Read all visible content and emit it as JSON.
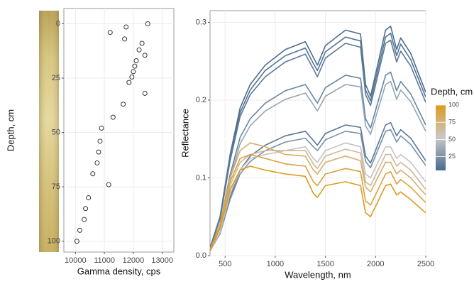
{
  "chart_data": [
    {
      "type": "scatter",
      "xlabel": "Gamma density, cps",
      "ylabel": "Depth, cm",
      "xlim": [
        9600,
        13400
      ],
      "xticks": [
        10000,
        11000,
        12000,
        13000
      ],
      "ylim": [
        105,
        -7
      ],
      "yticks": [
        0,
        25,
        50,
        75,
        100
      ],
      "grid": true,
      "color": "#333333",
      "x": [
        12500,
        11750,
        11200,
        11700,
        12300,
        12200,
        12400,
        12100,
        12050,
        12000,
        11950,
        11850,
        12400,
        11650,
        11300,
        10900,
        10850,
        10800,
        10750,
        10600,
        11150,
        10450,
        10350,
        10300,
        10150,
        10050
      ],
      "values": [
        0,
        1.5,
        4,
        7,
        9,
        12,
        14.5,
        17,
        19.5,
        22,
        24.5,
        27,
        32,
        37,
        43,
        48,
        54,
        59,
        64,
        69,
        74,
        80,
        85,
        90,
        95,
        100
      ]
    },
    {
      "type": "line",
      "xlabel": "Wavelength, nm",
      "ylabel": "Reflectance",
      "xlim": [
        350,
        2500
      ],
      "xticks": [
        500,
        1000,
        1500,
        2000,
        2500
      ],
      "ylim": [
        0,
        0.315
      ],
      "yticks": [
        {
          "value": 0,
          "label": "0.0"
        },
        0.1,
        0.2,
        0.3
      ],
      "grid": true,
      "x": [
        350,
        450,
        550,
        650,
        750,
        900,
        1100,
        1300,
        1380,
        1420,
        1500,
        1700,
        1850,
        1900,
        1950,
        2100,
        2150,
        2210,
        2250,
        2350,
        2500
      ],
      "series": [
        {
          "color": "#4e6d8f",
          "values": [
            0.01,
            0.05,
            0.13,
            0.19,
            0.22,
            0.245,
            0.265,
            0.275,
            0.255,
            0.245,
            0.27,
            0.29,
            0.285,
            0.22,
            0.205,
            0.29,
            0.295,
            0.265,
            0.28,
            0.26,
            0.21
          ]
        },
        {
          "color": "#557493",
          "values": [
            0.01,
            0.049,
            0.126,
            0.184,
            0.213,
            0.238,
            0.257,
            0.267,
            0.247,
            0.238,
            0.262,
            0.281,
            0.276,
            0.213,
            0.199,
            0.281,
            0.286,
            0.257,
            0.272,
            0.252,
            0.204
          ]
        },
        {
          "color": "#5b7a97",
          "values": [
            0.009,
            0.047,
            0.122,
            0.179,
            0.207,
            0.23,
            0.249,
            0.259,
            0.24,
            0.23,
            0.254,
            0.273,
            0.268,
            0.207,
            0.193,
            0.273,
            0.277,
            0.249,
            0.263,
            0.244,
            0.197
          ]
        },
        {
          "color": "#6a86a0",
          "values": [
            0.008,
            0.04,
            0.104,
            0.152,
            0.176,
            0.196,
            0.212,
            0.22,
            0.204,
            0.196,
            0.216,
            0.232,
            0.228,
            0.176,
            0.164,
            0.232,
            0.236,
            0.212,
            0.224,
            0.208,
            0.168
          ]
        },
        {
          "color": "#93a6b6",
          "values": [
            0.008,
            0.038,
            0.099,
            0.144,
            0.167,
            0.186,
            0.201,
            0.209,
            0.194,
            0.186,
            0.205,
            0.22,
            0.217,
            0.167,
            0.156,
            0.22,
            0.224,
            0.201,
            0.213,
            0.198,
            0.16
          ]
        },
        {
          "color": "#5a7896",
          "values": [
            0.006,
            0.029,
            0.075,
            0.11,
            0.128,
            0.142,
            0.154,
            0.16,
            0.148,
            0.142,
            0.157,
            0.168,
            0.165,
            0.128,
            0.119,
            0.168,
            0.171,
            0.154,
            0.162,
            0.151,
            0.122
          ]
        },
        {
          "color": "#7890a8",
          "values": [
            0.006,
            0.028,
            0.072,
            0.105,
            0.121,
            0.135,
            0.146,
            0.151,
            0.14,
            0.135,
            0.149,
            0.16,
            0.157,
            0.121,
            0.113,
            0.16,
            0.162,
            0.146,
            0.154,
            0.143,
            0.116
          ]
        },
        {
          "color": "#c4c4c4",
          "values": [
            0.006,
            0.03,
            0.08,
            0.11,
            0.125,
            0.13,
            0.135,
            0.14,
            0.125,
            0.12,
            0.135,
            0.145,
            0.14,
            0.105,
            0.1,
            0.14,
            0.14,
            0.125,
            0.13,
            0.12,
            0.095
          ]
        },
        {
          "color": "#cdb996",
          "values": [
            0.006,
            0.035,
            0.09,
            0.12,
            0.13,
            0.135,
            0.135,
            0.135,
            0.118,
            0.112,
            0.128,
            0.137,
            0.132,
            0.095,
            0.09,
            0.13,
            0.13,
            0.115,
            0.12,
            0.11,
            0.085
          ]
        },
        {
          "color": "#d4ae6c",
          "values": [
            0.007,
            0.04,
            0.1,
            0.135,
            0.145,
            0.14,
            0.13,
            0.128,
            0.11,
            0.105,
            0.12,
            0.128,
            0.122,
            0.088,
            0.082,
            0.12,
            0.12,
            0.105,
            0.11,
            0.1,
            0.078
          ]
        },
        {
          "color": "#d9a23f",
          "values": [
            0.007,
            0.04,
            0.095,
            0.125,
            0.13,
            0.125,
            0.118,
            0.115,
            0.095,
            0.09,
            0.105,
            0.112,
            0.108,
            0.07,
            0.065,
            0.105,
            0.108,
            0.092,
            0.098,
            0.088,
            0.068
          ]
        },
        {
          "color": "#dc9a1f",
          "values": [
            0.006,
            0.035,
            0.085,
            0.11,
            0.115,
            0.11,
            0.105,
            0.102,
            0.08,
            0.075,
            0.09,
            0.095,
            0.09,
            0.055,
            0.05,
            0.09,
            0.092,
            0.078,
            0.082,
            0.072,
            0.055
          ]
        }
      ],
      "colorbar": {
        "title": "Depth, cm",
        "lim": [
          5,
          100
        ],
        "ticks": [
          25,
          50,
          75,
          100
        ],
        "colors": [
          "#4a6a8c",
          "#c8c8c8",
          "#dc9a1f"
        ]
      }
    }
  ]
}
